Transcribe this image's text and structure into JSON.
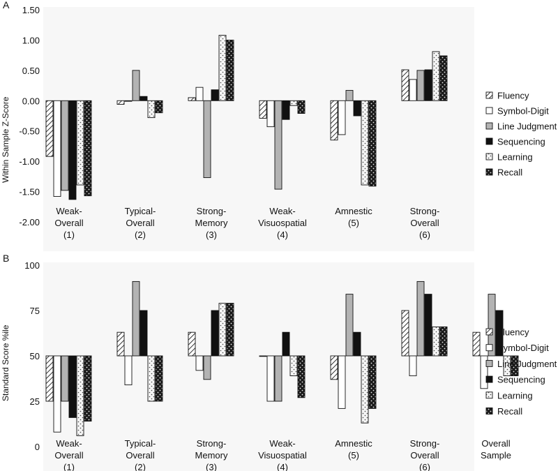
{
  "colors": {
    "panel_bg": "#f7f7f7",
    "bar_stroke": "#111111",
    "fluency": "#ffffff",
    "symbol_digit": "#ffffff",
    "line_judgment": "#b3b3b3",
    "sequencing": "#111111",
    "learning": "#f4f4f4",
    "recall": "#1a1a1a"
  },
  "chart_data": [
    {
      "id": "A",
      "panel_label": "A",
      "type": "bar",
      "ylabel": "Within Sample  Z-Score",
      "ylim": [
        -2.0,
        1.5
      ],
      "yticks": [
        1.5,
        1.0,
        0.5,
        0.0,
        -0.5,
        -1.0,
        -1.5,
        -2.0
      ],
      "ytick_labels": [
        "1.50",
        "1.00",
        "0.50",
        "0.00",
        "-0.50",
        "-1.00",
        "-1.50",
        "-2.00"
      ],
      "baseline": 0,
      "grid": false,
      "legend_position": "right",
      "categories": [
        [
          "Weak-",
          "Overall",
          "(1)"
        ],
        [
          "Typical-",
          "Overall",
          "(2)"
        ],
        [
          "Strong-",
          "Memory",
          "(3)"
        ],
        [
          "Weak-",
          "Visuospatial",
          "(4)"
        ],
        [
          "Amnestic",
          "(5)"
        ],
        [
          "Strong-",
          "Overall",
          "(6)"
        ]
      ],
      "series": [
        {
          "name": "Fluency",
          "key": "fluency",
          "values": [
            -0.92,
            -0.06,
            0.05,
            -0.29,
            -0.65,
            0.51
          ]
        },
        {
          "name": "Symbol-Digit",
          "key": "symbol_digit",
          "values": [
            -1.58,
            -0.01,
            0.22,
            -0.43,
            -0.56,
            0.35
          ]
        },
        {
          "name": "Line Judgment",
          "key": "line_judgment",
          "values": [
            -1.48,
            0.5,
            -1.27,
            -1.46,
            0.17,
            0.5
          ]
        },
        {
          "name": "Sequencing",
          "key": "sequencing",
          "values": [
            -1.63,
            0.07,
            0.18,
            -0.31,
            -0.25,
            0.51
          ]
        },
        {
          "name": "Learning",
          "key": "learning",
          "values": [
            -1.39,
            -0.28,
            1.08,
            -0.08,
            -1.39,
            0.81
          ]
        },
        {
          "name": "Recall",
          "key": "recall",
          "values": [
            -1.57,
            -0.2,
            1.0,
            -0.21,
            -1.41,
            0.74
          ]
        }
      ]
    },
    {
      "id": "B",
      "panel_label": "B",
      "type": "bar",
      "ylabel": "Standard Score %ile",
      "ylim": [
        0,
        100
      ],
      "yticks": [
        100,
        75,
        50,
        25,
        0
      ],
      "ytick_labels": [
        "100",
        "75",
        "50",
        "25",
        "0"
      ],
      "baseline": 50,
      "grid": false,
      "legend_position": "right",
      "categories": [
        [
          "Weak-",
          "Overall",
          "(1)"
        ],
        [
          "Typical-",
          "Overall",
          "(2)"
        ],
        [
          "Strong-",
          "Memory",
          "(3)"
        ],
        [
          "Weak-",
          "Visuospatial",
          "(4)"
        ],
        [
          "Amnestic",
          "(5)"
        ],
        [
          "Strong-",
          "Overall",
          "(6)"
        ],
        [
          "Overall",
          "Sample"
        ]
      ],
      "series": [
        {
          "name": "Fluency",
          "key": "fluency",
          "values": [
            25,
            63,
            63,
            50,
            37,
            75,
            63
          ]
        },
        {
          "name": "Symbol-Digit",
          "key": "symbol_digit",
          "values": [
            8,
            34,
            42,
            25,
            21,
            39,
            32
          ]
        },
        {
          "name": "Line Judgment",
          "key": "line_judgment",
          "values": [
            25,
            91,
            37,
            25,
            84,
            91,
            84
          ]
        },
        {
          "name": "Sequencing",
          "key": "sequencing",
          "values": [
            16,
            75,
            75,
            63,
            63,
            84,
            75
          ]
        },
        {
          "name": "Learning",
          "key": "learning",
          "values": [
            6,
            25,
            79,
            39,
            13,
            66,
            39
          ]
        },
        {
          "name": "Recall",
          "key": "recall",
          "values": [
            14,
            25,
            79,
            27,
            21,
            66,
            39
          ]
        }
      ]
    }
  ]
}
